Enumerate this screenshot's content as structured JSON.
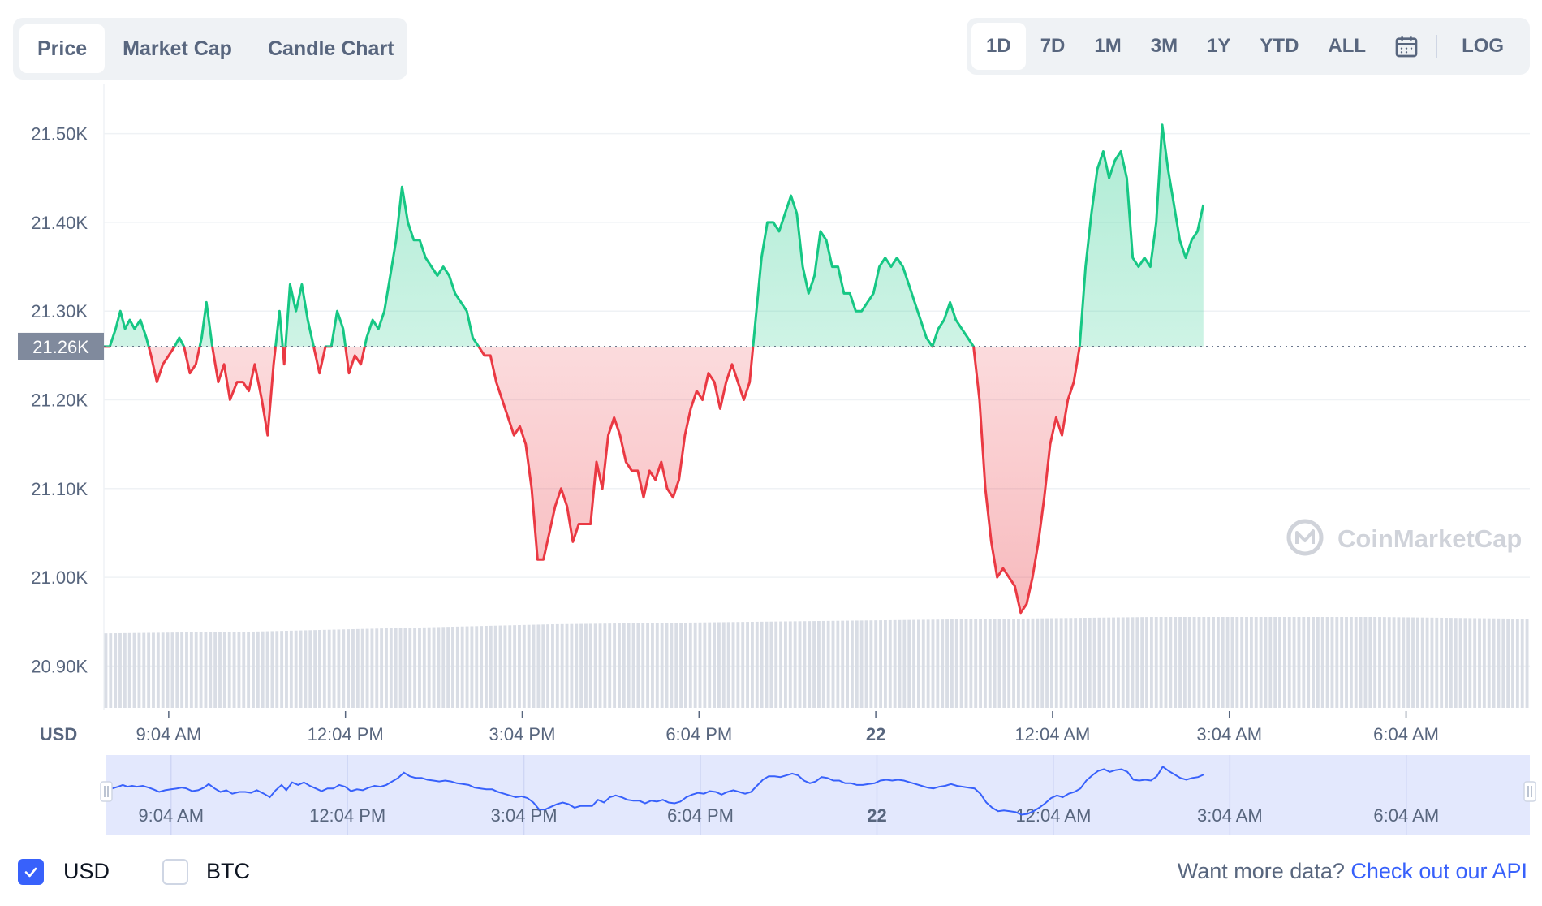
{
  "chart_tabs": [
    {
      "label": "Price",
      "active": true
    },
    {
      "label": "Market Cap",
      "active": false
    },
    {
      "label": "Candle Chart",
      "active": false
    }
  ],
  "range_tabs": [
    {
      "label": "1D",
      "active": true
    },
    {
      "label": "7D",
      "active": false
    },
    {
      "label": "1M",
      "active": false
    },
    {
      "label": "3M",
      "active": false
    },
    {
      "label": "1Y",
      "active": false
    },
    {
      "label": "YTD",
      "active": false
    },
    {
      "label": "ALL",
      "active": false
    }
  ],
  "calendar_icon": "calendar-icon",
  "log_label": "LOG",
  "currency_toggles": [
    {
      "label": "USD",
      "checked": true
    },
    {
      "label": "BTC",
      "checked": false
    }
  ],
  "api_prompt": "Want more data?",
  "api_link": "Check out our API",
  "watermark": "CoinMarketCap",
  "colors": {
    "up": "#16c784",
    "down": "#ea3943",
    "navigator_line": "#3861fb",
    "navigator_fill": "#e3e8fd",
    "reference_badge": "#808a9d"
  },
  "chart_data": {
    "type": "line",
    "y_unit": "USD",
    "ylim": [
      20.85,
      21.55
    ],
    "y_ticks": [
      21.5,
      21.4,
      21.3,
      21.2,
      21.1,
      21.0,
      20.9
    ],
    "y_tick_labels": [
      "21.50K",
      "21.40K",
      "21.30K",
      "21.20K",
      "21.10K",
      "21.00K",
      "20.90K"
    ],
    "reference_value": 21.26,
    "reference_label": "21.26K",
    "x_tick_labels": [
      "9:04 AM",
      "12:04 PM",
      "3:04 PM",
      "6:04 PM",
      "22",
      "12:04 AM",
      "3:04 AM",
      "6:04 AM"
    ],
    "x_tick_bold": [
      false,
      false,
      false,
      false,
      true,
      false,
      false,
      false
    ],
    "x_ticks_hours": [
      1.1,
      4.1,
      7.1,
      10.1,
      13.1,
      16.1,
      19.1,
      22.1
    ],
    "x_range_hours": [
      0,
      24.2
    ],
    "series": [
      {
        "values_k": [
          [
            0.0,
            21.26
          ],
          [
            0.1,
            21.26
          ],
          [
            0.2,
            21.28
          ],
          [
            0.28,
            21.3
          ],
          [
            0.36,
            21.28
          ],
          [
            0.44,
            21.29
          ],
          [
            0.52,
            21.28
          ],
          [
            0.62,
            21.29
          ],
          [
            0.72,
            21.27
          ],
          [
            0.8,
            21.25
          ],
          [
            0.9,
            21.22
          ],
          [
            1.0,
            21.24
          ],
          [
            1.1,
            21.25
          ],
          [
            1.2,
            21.26
          ],
          [
            1.28,
            21.27
          ],
          [
            1.36,
            21.26
          ],
          [
            1.46,
            21.23
          ],
          [
            1.56,
            21.24
          ],
          [
            1.66,
            21.27
          ],
          [
            1.74,
            21.31
          ],
          [
            1.84,
            21.26
          ],
          [
            1.94,
            21.22
          ],
          [
            2.04,
            21.24
          ],
          [
            2.14,
            21.2
          ],
          [
            2.26,
            21.22
          ],
          [
            2.36,
            21.22
          ],
          [
            2.46,
            21.21
          ],
          [
            2.56,
            21.24
          ],
          [
            2.68,
            21.2
          ],
          [
            2.78,
            21.16
          ],
          [
            2.88,
            21.24
          ],
          [
            2.98,
            21.3
          ],
          [
            3.06,
            21.24
          ],
          [
            3.16,
            21.33
          ],
          [
            3.26,
            21.3
          ],
          [
            3.36,
            21.33
          ],
          [
            3.46,
            21.29
          ],
          [
            3.56,
            21.26
          ],
          [
            3.66,
            21.23
          ],
          [
            3.76,
            21.26
          ],
          [
            3.86,
            21.26
          ],
          [
            3.96,
            21.3
          ],
          [
            4.06,
            21.28
          ],
          [
            4.16,
            21.23
          ],
          [
            4.26,
            21.25
          ],
          [
            4.36,
            21.24
          ],
          [
            4.46,
            21.27
          ],
          [
            4.56,
            21.29
          ],
          [
            4.66,
            21.28
          ],
          [
            4.76,
            21.3
          ],
          [
            4.86,
            21.34
          ],
          [
            4.96,
            21.38
          ],
          [
            5.06,
            21.44
          ],
          [
            5.16,
            21.4
          ],
          [
            5.26,
            21.38
          ],
          [
            5.36,
            21.38
          ],
          [
            5.46,
            21.36
          ],
          [
            5.56,
            21.35
          ],
          [
            5.66,
            21.34
          ],
          [
            5.76,
            21.35
          ],
          [
            5.86,
            21.34
          ],
          [
            5.96,
            21.32
          ],
          [
            6.06,
            21.31
          ],
          [
            6.16,
            21.3
          ],
          [
            6.26,
            21.27
          ],
          [
            6.36,
            21.26
          ],
          [
            6.46,
            21.25
          ],
          [
            6.56,
            21.25
          ],
          [
            6.66,
            21.22
          ],
          [
            6.76,
            21.2
          ],
          [
            6.86,
            21.18
          ],
          [
            6.96,
            21.16
          ],
          [
            7.06,
            21.17
          ],
          [
            7.16,
            21.15
          ],
          [
            7.26,
            21.1
          ],
          [
            7.36,
            21.02
          ],
          [
            7.46,
            21.02
          ],
          [
            7.56,
            21.05
          ],
          [
            7.66,
            21.08
          ],
          [
            7.76,
            21.1
          ],
          [
            7.86,
            21.08
          ],
          [
            7.96,
            21.04
          ],
          [
            8.06,
            21.06
          ],
          [
            8.16,
            21.06
          ],
          [
            8.26,
            21.06
          ],
          [
            8.36,
            21.13
          ],
          [
            8.46,
            21.1
          ],
          [
            8.56,
            21.16
          ],
          [
            8.66,
            21.18
          ],
          [
            8.76,
            21.16
          ],
          [
            8.86,
            21.13
          ],
          [
            8.96,
            21.12
          ],
          [
            9.06,
            21.12
          ],
          [
            9.16,
            21.09
          ],
          [
            9.26,
            21.12
          ],
          [
            9.36,
            21.11
          ],
          [
            9.46,
            21.13
          ],
          [
            9.56,
            21.1
          ],
          [
            9.66,
            21.09
          ],
          [
            9.76,
            21.11
          ],
          [
            9.86,
            21.16
          ],
          [
            9.96,
            21.19
          ],
          [
            10.06,
            21.21
          ],
          [
            10.16,
            21.2
          ],
          [
            10.26,
            21.23
          ],
          [
            10.36,
            21.22
          ],
          [
            10.46,
            21.19
          ],
          [
            10.56,
            21.22
          ],
          [
            10.66,
            21.24
          ],
          [
            10.76,
            21.22
          ],
          [
            10.86,
            21.2
          ],
          [
            10.96,
            21.22
          ],
          [
            11.06,
            21.29
          ],
          [
            11.16,
            21.36
          ],
          [
            11.26,
            21.4
          ],
          [
            11.36,
            21.4
          ],
          [
            11.46,
            21.39
          ],
          [
            11.56,
            21.41
          ],
          [
            11.66,
            21.43
          ],
          [
            11.76,
            21.41
          ],
          [
            11.86,
            21.35
          ],
          [
            11.96,
            21.32
          ],
          [
            12.06,
            21.34
          ],
          [
            12.16,
            21.39
          ],
          [
            12.26,
            21.38
          ],
          [
            12.36,
            21.35
          ],
          [
            12.46,
            21.35
          ],
          [
            12.56,
            21.32
          ],
          [
            12.66,
            21.32
          ],
          [
            12.76,
            21.3
          ],
          [
            12.86,
            21.3
          ],
          [
            12.96,
            21.31
          ],
          [
            13.06,
            21.32
          ],
          [
            13.16,
            21.35
          ],
          [
            13.26,
            21.36
          ],
          [
            13.36,
            21.35
          ],
          [
            13.46,
            21.36
          ],
          [
            13.56,
            21.35
          ],
          [
            13.66,
            21.33
          ],
          [
            13.76,
            21.31
          ],
          [
            13.86,
            21.29
          ],
          [
            13.96,
            21.27
          ],
          [
            14.06,
            21.26
          ],
          [
            14.16,
            21.28
          ],
          [
            14.26,
            21.29
          ],
          [
            14.36,
            21.31
          ],
          [
            14.46,
            21.29
          ],
          [
            14.56,
            21.28
          ],
          [
            14.66,
            21.27
          ],
          [
            14.76,
            21.26
          ],
          [
            14.86,
            21.2
          ],
          [
            14.96,
            21.1
          ],
          [
            15.06,
            21.04
          ],
          [
            15.16,
            21.0
          ],
          [
            15.26,
            21.01
          ],
          [
            15.36,
            21.0
          ],
          [
            15.46,
            20.99
          ],
          [
            15.56,
            20.96
          ],
          [
            15.66,
            20.97
          ],
          [
            15.76,
            21.0
          ],
          [
            15.86,
            21.04
          ],
          [
            15.96,
            21.09
          ],
          [
            16.06,
            21.15
          ],
          [
            16.16,
            21.18
          ],
          [
            16.26,
            21.16
          ],
          [
            16.36,
            21.2
          ],
          [
            16.46,
            21.22
          ],
          [
            16.56,
            21.26
          ],
          [
            16.66,
            21.35
          ],
          [
            16.76,
            21.41
          ],
          [
            16.86,
            21.46
          ],
          [
            16.96,
            21.48
          ],
          [
            17.06,
            21.45
          ],
          [
            17.16,
            21.47
          ],
          [
            17.26,
            21.48
          ],
          [
            17.36,
            21.45
          ],
          [
            17.46,
            21.36
          ],
          [
            17.56,
            21.35
          ],
          [
            17.66,
            21.36
          ],
          [
            17.76,
            21.35
          ],
          [
            17.86,
            21.4
          ],
          [
            17.96,
            21.51
          ],
          [
            18.06,
            21.46
          ],
          [
            18.16,
            21.42
          ],
          [
            18.26,
            21.38
          ],
          [
            18.36,
            21.36
          ],
          [
            18.46,
            21.38
          ],
          [
            18.56,
            21.39
          ],
          [
            18.66,
            21.42
          ]
        ]
      }
    ],
    "volume_bars_relative": [
      0.82,
      0.83,
      0.84,
      0.86,
      0.88,
      0.9,
      0.92,
      0.93,
      0.94,
      0.95,
      0.96,
      0.97,
      0.98,
      0.99,
      1.0,
      1.0,
      1.0,
      1.0,
      0.99,
      0.98
    ]
  }
}
